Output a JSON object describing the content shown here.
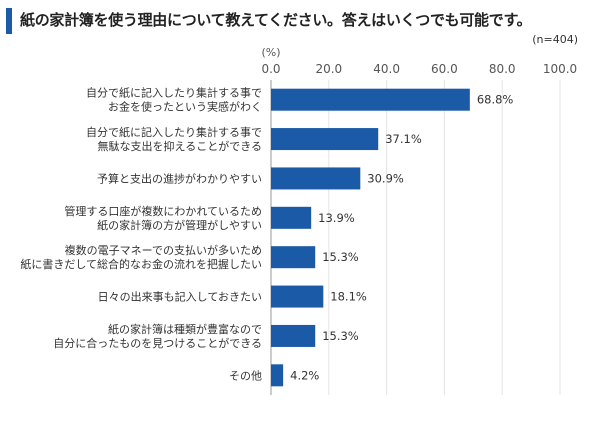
{
  "title": "紙の家計簿を使う理由について教えてください。答えはいくつでも可能です。",
  "sample_size": "(n=404)",
  "colors": {
    "bar": "#1a5aa6",
    "accent": "#1a5aa6",
    "grid": "#e4e4e4"
  },
  "chart_data": {
    "type": "bar",
    "orientation": "horizontal",
    "title": "紙の家計簿を使う理由について教えてください。答えはいくつでも可能です。",
    "unit_label": "(%)",
    "xlim": [
      0,
      100
    ],
    "ticks": [
      "0.0",
      "20.0",
      "40.0",
      "60.0",
      "80.0",
      "100.0"
    ],
    "tick_values": [
      0,
      20,
      40,
      60,
      80,
      100
    ],
    "categories": [
      [
        "自分で紙に記入したり集計する事で",
        "お金を使ったという実感がわく"
      ],
      [
        "自分で紙に記入したり集計する事で",
        "無駄な支出を抑えることができる"
      ],
      [
        "予算と支出の進捗がわかりやすい"
      ],
      [
        "管理する口座が複数にわかれているため",
        "紙の家計簿の方が管理がしやすい"
      ],
      [
        "複数の電子マネーでの支払いが多いため",
        "紙に書きだして総合的なお金の流れを把握したい"
      ],
      [
        "日々の出来事も記入しておきたい"
      ],
      [
        "紙の家計簿は種類が豊富なので",
        "自分に合ったものを見つけることができる"
      ],
      [
        "その他"
      ]
    ],
    "values": [
      68.8,
      37.1,
      30.9,
      13.9,
      15.3,
      18.1,
      15.3,
      4.2
    ],
    "value_labels": [
      "68.8%",
      "37.1%",
      "30.9%",
      "13.9%",
      "15.3%",
      "18.1%",
      "15.3%",
      "4.2%"
    ]
  }
}
